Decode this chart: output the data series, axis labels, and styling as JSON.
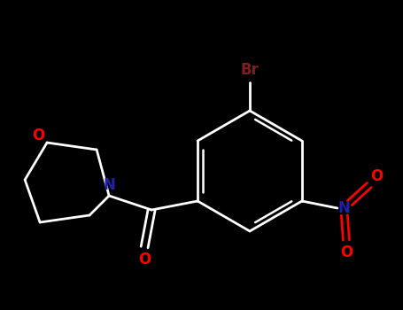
{
  "background_color": "#000000",
  "bond_color": "#ffffff",
  "figsize": [
    4.55,
    3.5
  ],
  "dpi": 100,
  "atom_colors": {
    "N": "#2020aa",
    "O": "#ff0000",
    "Br": "#7d2020"
  },
  "lw": 2.0,
  "fontsize": 11
}
